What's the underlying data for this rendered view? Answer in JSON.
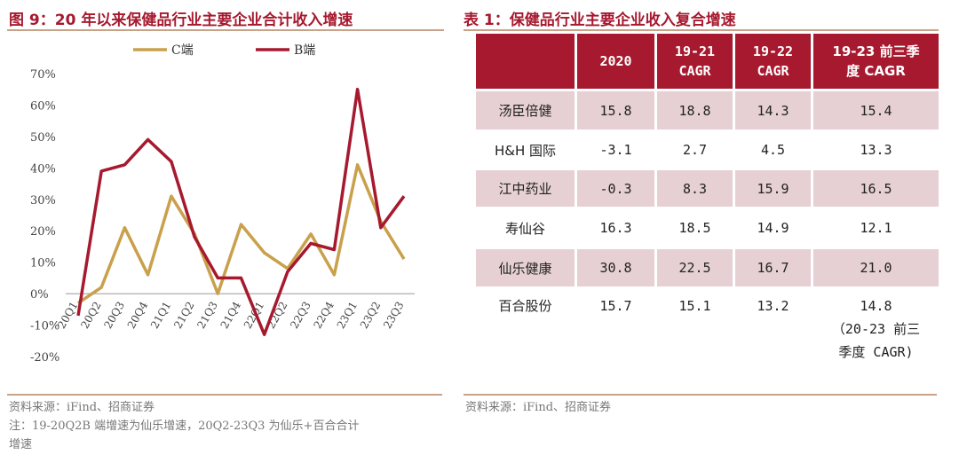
{
  "left": {
    "title": "图 9：20 年以来保健品行业主要企业合计收入增速",
    "source": "资料来源：iFind、招商证券",
    "note_line1": "注：19-20Q2B 端增速为仙乐增速，20Q2-23Q3 为仙乐+百合合计",
    "note_line2": "增速"
  },
  "chart_data": {
    "type": "line",
    "title": "20 年以来保健品行业主要企业合计收入增速",
    "categories": [
      "20Q1",
      "20Q2",
      "20Q3",
      "20Q4",
      "21Q1",
      "21Q2",
      "21Q3",
      "21Q4",
      "22Q1",
      "22Q2",
      "22Q3",
      "22Q4",
      "23Q1",
      "23Q2",
      "23Q3"
    ],
    "series": [
      {
        "name": "C端",
        "color": "#c9a04c",
        "values": [
          -3,
          2,
          21,
          6,
          31,
          19,
          0,
          22,
          13,
          8,
          19,
          6,
          41,
          23,
          11
        ]
      },
      {
        "name": "B端",
        "color": "#a6192e",
        "values": [
          -7,
          39,
          41,
          49,
          42,
          18,
          5,
          5,
          -13,
          7,
          16,
          14,
          65,
          21,
          31
        ]
      }
    ],
    "y_ticks": [
      "70%",
      "60%",
      "50%",
      "40%",
      "30%",
      "20%",
      "10%",
      "0%",
      "-10%",
      "-20%"
    ],
    "ylim": [
      -20,
      70
    ],
    "legend_position": "top"
  },
  "right": {
    "title": "表 1：保健品行业主要企业收入复合增速",
    "source": "资料来源：iFind、招商证券",
    "headers": {
      "c0": "",
      "c1": "2020",
      "c2a": "19-21",
      "c2b": "CAGR",
      "c3a": "19-22",
      "c3b": "CAGR",
      "c4a": "19-23 前三季",
      "c4b": "度 CAGR"
    },
    "rows": [
      {
        "name": "汤臣倍健",
        "v2020": "15.8",
        "c1921": "18.8",
        "c1922": "14.3",
        "c1923": "15.4"
      },
      {
        "name": "H&H 国际",
        "v2020": "-3.1",
        "c1921": "2.7",
        "c1922": "4.5",
        "c1923": "13.3"
      },
      {
        "name": "江中药业",
        "v2020": "-0.3",
        "c1921": "8.3",
        "c1922": "15.9",
        "c1923": "16.5"
      },
      {
        "name": "寿仙谷",
        "v2020": "16.3",
        "c1921": "18.5",
        "c1922": "14.9",
        "c1923": "12.1"
      },
      {
        "name": "仙乐健康",
        "v2020": "30.8",
        "c1921": "22.5",
        "c1922": "16.7",
        "c1923": "21.0"
      }
    ],
    "last_row": {
      "name": "百合股份",
      "v2020": "15.7",
      "c1921": "15.1",
      "c1922": "13.2",
      "c1923_l1": "14.8",
      "c1923_l2": "（20-23 前三",
      "c1923_l3": "季度 CAGR)"
    }
  }
}
